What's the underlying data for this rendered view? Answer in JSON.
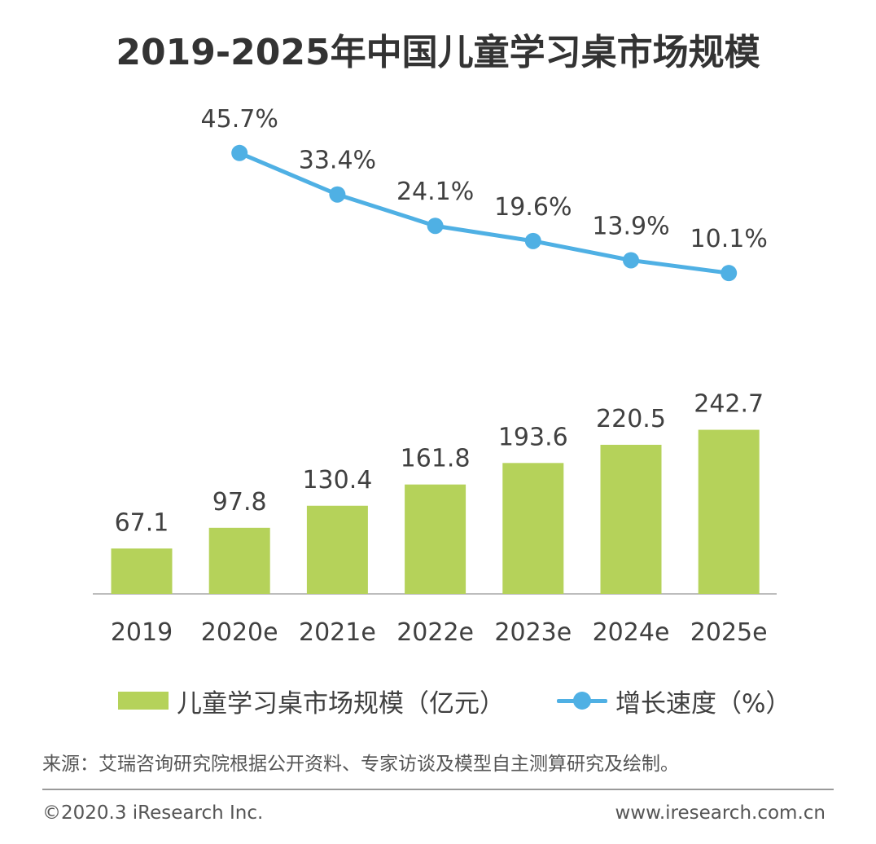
{
  "title": "2019-2025年中国儿童学习桌市场规模",
  "chart_data": {
    "type": "bar",
    "categories": [
      "2019",
      "2020e",
      "2021e",
      "2022e",
      "2023e",
      "2024e",
      "2025e"
    ],
    "series": [
      {
        "name": "儿童学习桌市场规模（亿元）",
        "type": "bar",
        "color": "#B5D25A",
        "values": [
          67.1,
          97.8,
          130.4,
          161.8,
          193.6,
          220.5,
          242.7
        ],
        "labels": [
          "67.1",
          "97.8",
          "130.4",
          "161.8",
          "193.6",
          "220.5",
          "242.7"
        ]
      },
      {
        "name": "增长速度（%）",
        "type": "line",
        "color": "#4FB0E4",
        "values": [
          null,
          45.7,
          33.4,
          24.1,
          19.6,
          13.9,
          10.1
        ],
        "labels": [
          "",
          "45.7%",
          "33.4%",
          "24.1%",
          "19.6%",
          "13.9%",
          "10.1%"
        ]
      }
    ],
    "grid": false,
    "legend_position": "bottom"
  },
  "legend": {
    "bar_label": "儿童学习桌市场规模（亿元）",
    "line_label": "增长速度（%）"
  },
  "source": "来源：艾瑞咨询研究院根据公开资料、专家访谈及模型自主测算研究及绘制。",
  "footer": {
    "copyright": "©2020.3 iResearch Inc.",
    "website": "www.iresearch.com.cn"
  }
}
